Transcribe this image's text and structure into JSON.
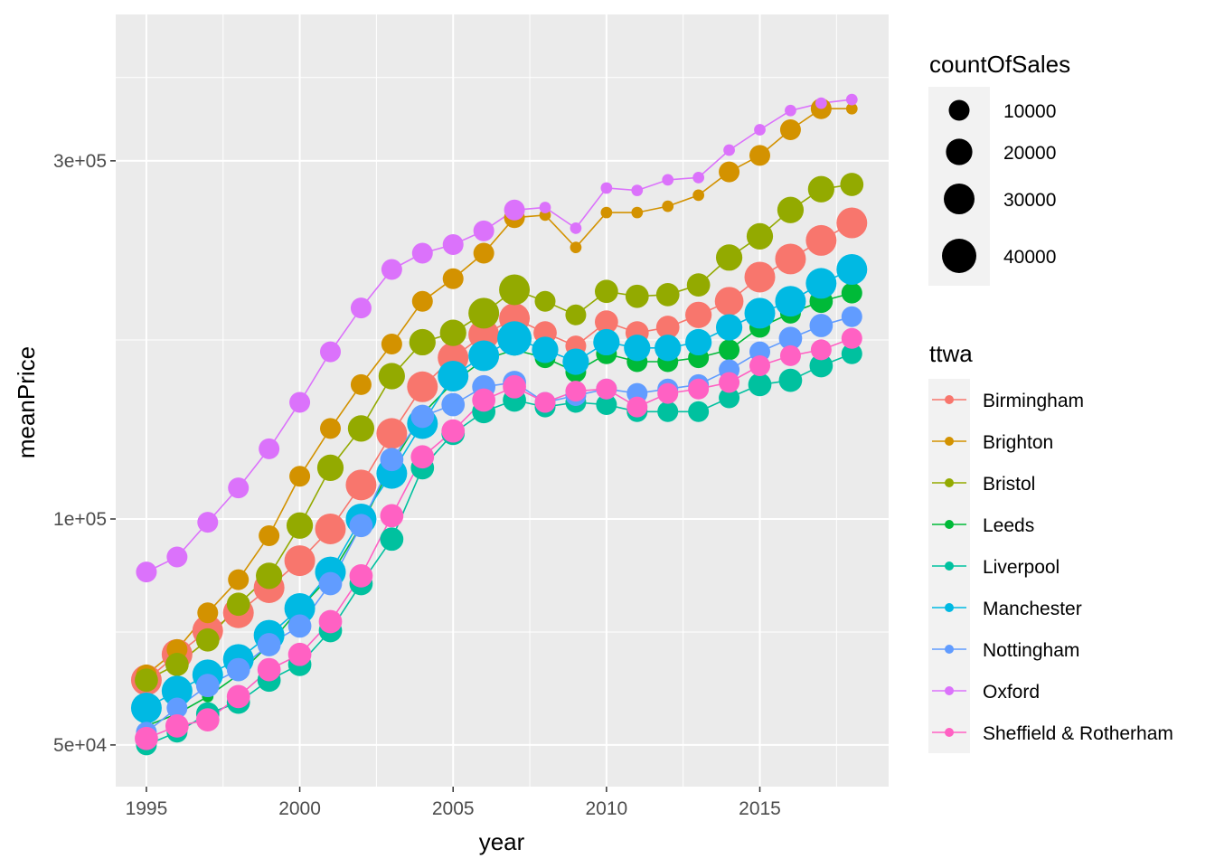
{
  "chart_data": {
    "type": "scatter",
    "xlabel": "year",
    "ylabel": "meanPrice",
    "x_ticks": [
      "1995",
      "2000",
      "2005",
      "2010",
      "2015"
    ],
    "y_ticks": [
      "5e+04",
      "1e+05",
      "3e+05"
    ],
    "y_scale": "log10",
    "xlim": [
      1994,
      2019.2
    ],
    "ylim": [
      44000,
      470000
    ],
    "grid": true,
    "legend_placement": "right",
    "size_legend": {
      "title": "countOfSales",
      "labels": [
        "10000",
        "20000",
        "30000",
        "40000"
      ],
      "values": [
        10000,
        20000,
        30000,
        40000
      ]
    },
    "color_legend": {
      "title": "ttwa"
    },
    "years": [
      1995,
      1996,
      1997,
      1998,
      1999,
      2000,
      2001,
      2002,
      2003,
      2004,
      2005,
      2006,
      2007,
      2008,
      2009,
      2010,
      2011,
      2012,
      2013,
      2014,
      2015,
      2016,
      2017,
      2018
    ],
    "series": [
      {
        "name": "Birmingham",
        "color": "#F8766D",
        "values": [
          61000,
          66000,
          71000,
          75000,
          81000,
          88000,
          97000,
          111000,
          130000,
          150000,
          164000,
          176000,
          185000,
          177000,
          170000,
          183000,
          177000,
          180000,
          187000,
          195000,
          210000,
          222000,
          235000,
          248000
        ],
        "counts": [
          30000,
          30000,
          30000,
          30000,
          30000,
          30000,
          30000,
          30000,
          30000,
          30000,
          30000,
          30000,
          30000,
          14000,
          10000,
          14000,
          14000,
          14000,
          20000,
          25000,
          30000,
          30000,
          30000,
          30000
        ]
      },
      {
        "name": "Brighton",
        "color": "#D39200",
        "values": [
          62000,
          67000,
          75000,
          83000,
          95000,
          114000,
          132000,
          151000,
          171000,
          195000,
          209000,
          226000,
          252000,
          254000,
          230000,
          256000,
          256000,
          261000,
          270000,
          290000,
          305000,
          330000,
          352000,
          352000
        ],
        "counts": [
          10000,
          10000,
          10000,
          10000,
          10000,
          10000,
          10000,
          10000,
          10000,
          10000,
          10000,
          10000,
          10000,
          1000,
          1000,
          1000,
          1000,
          1000,
          1000,
          10000,
          10000,
          10000,
          10000,
          1000
        ]
      },
      {
        "name": "Bristol",
        "color": "#93AA00",
        "values": [
          61000,
          64000,
          69000,
          77000,
          84000,
          98000,
          117000,
          132000,
          155000,
          172000,
          177000,
          188000,
          202000,
          195000,
          187000,
          201000,
          198000,
          199000,
          205000,
          223000,
          238000,
          258000,
          275000,
          279000
        ],
        "counts": [
          14000,
          14000,
          14000,
          14000,
          20000,
          20000,
          20000,
          20000,
          20000,
          20000,
          20000,
          30000,
          30000,
          10000,
          10000,
          14000,
          14000,
          14000,
          14000,
          20000,
          20000,
          20000,
          20000,
          14000
        ]
      },
      {
        "name": "Leeds",
        "color": "#00BA38",
        "values": [
          53000,
          55000,
          58000,
          62000,
          68000,
          76000,
          84000,
          98000,
          118000,
          138000,
          152000,
          163000,
          168000,
          164000,
          157000,
          166000,
          162000,
          162000,
          164000,
          168000,
          180000,
          188000,
          195000,
          200000
        ],
        "counts": [
          1000,
          1000,
          1000,
          1000,
          1000,
          1000,
          1000,
          1000,
          1000,
          1000,
          1000,
          1000,
          1000,
          10000,
          10000,
          10000,
          10000,
          10000,
          10000,
          10000,
          10000,
          10000,
          14000,
          10000
        ]
      },
      {
        "name": "Liverpool",
        "color": "#00C19F",
        "values": [
          50000,
          52000,
          55000,
          57000,
          61000,
          64000,
          71000,
          82000,
          94000,
          117000,
          130000,
          139000,
          144000,
          141000,
          143000,
          142000,
          139000,
          139000,
          139000,
          145000,
          151000,
          153000,
          160000,
          166000
        ],
        "counts": [
          10000,
          10000,
          14000,
          14000,
          14000,
          14000,
          14000,
          14000,
          14000,
          14000,
          14000,
          14000,
          14000,
          10000,
          10000,
          10000,
          10000,
          10000,
          10000,
          10000,
          14000,
          14000,
          14000,
          10000
        ]
      },
      {
        "name": "Manchester",
        "color": "#00B9E3",
        "values": [
          56000,
          59000,
          62000,
          65000,
          70000,
          76000,
          85000,
          100000,
          115000,
          134000,
          155000,
          165000,
          174000,
          168000,
          162000,
          172000,
          169000,
          169000,
          172000,
          180000,
          188000,
          195000,
          206000,
          215000
        ],
        "counts": [
          30000,
          30000,
          30000,
          30000,
          30000,
          30000,
          30000,
          30000,
          30000,
          30000,
          30000,
          30000,
          40000,
          20000,
          20000,
          20000,
          20000,
          20000,
          20000,
          20000,
          30000,
          30000,
          30000,
          30000
        ]
      },
      {
        "name": "Nottingham",
        "color": "#619CFF",
        "values": [
          52000,
          56000,
          60000,
          63000,
          68000,
          72000,
          82000,
          98000,
          120000,
          137000,
          142000,
          150000,
          152000,
          143000,
          146000,
          149000,
          147000,
          149000,
          151000,
          158000,
          167000,
          174000,
          181000,
          186000
        ],
        "counts": [
          10000,
          10000,
          14000,
          14000,
          14000,
          14000,
          14000,
          14000,
          14000,
          14000,
          14000,
          14000,
          14000,
          10000,
          10000,
          10000,
          10000,
          10000,
          10000,
          10000,
          10000,
          14000,
          14000,
          10000
        ]
      },
      {
        "name": "Oxford",
        "color": "#DB72FB",
        "values": [
          85000,
          89000,
          99000,
          110000,
          124000,
          143000,
          167000,
          191000,
          215000,
          226000,
          232000,
          242000,
          258000,
          260000,
          244000,
          276000,
          274000,
          283000,
          285000,
          310000,
          330000,
          350000,
          358000,
          362000
        ],
        "counts": [
          10000,
          10000,
          10000,
          10000,
          10000,
          10000,
          10000,
          10000,
          10000,
          10000,
          10000,
          10000,
          10000,
          1000,
          1000,
          1000,
          1000,
          1000,
          1000,
          1000,
          1000,
          1000,
          1000,
          1000
        ]
      },
      {
        "name": "Sheffield & Rotherham",
        "color": "#FF61C3",
        "values": [
          51000,
          53000,
          54000,
          58000,
          63000,
          66000,
          73000,
          84000,
          101000,
          121000,
          131000,
          144000,
          150000,
          143000,
          148000,
          149000,
          141000,
          147000,
          149000,
          152000,
          160000,
          165000,
          168000,
          174000
        ],
        "counts": [
          14000,
          14000,
          14000,
          14000,
          14000,
          14000,
          14000,
          14000,
          14000,
          14000,
          14000,
          14000,
          14000,
          10000,
          10000,
          10000,
          10000,
          10000,
          10000,
          10000,
          10000,
          10000,
          10000,
          10000
        ]
      }
    ]
  }
}
